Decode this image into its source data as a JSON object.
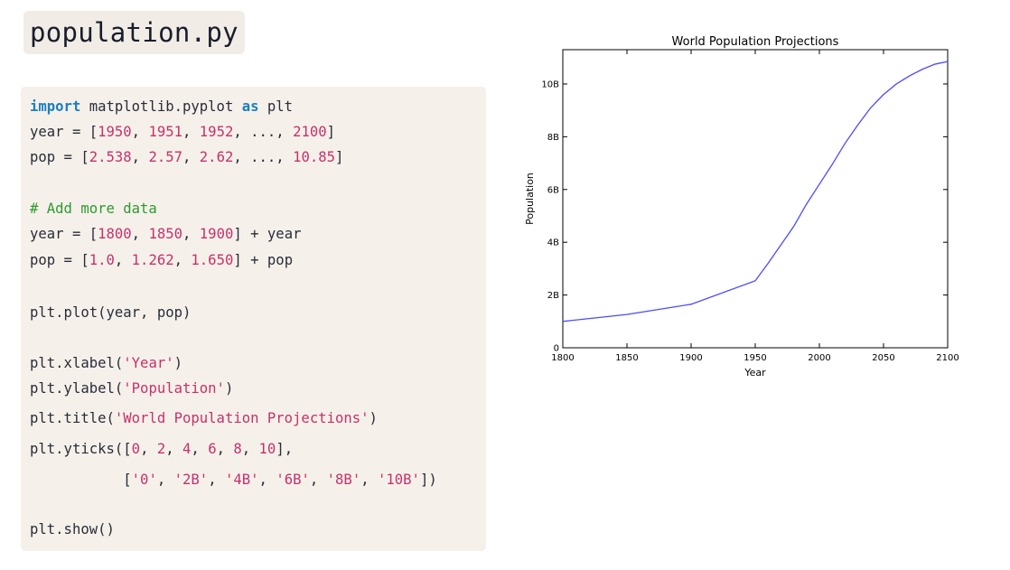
{
  "file_title": "population.py",
  "code": {
    "line1": {
      "kw1": "import",
      "mid": " matplotlib.pyplot ",
      "kw2": "as",
      "end": " plt"
    },
    "line2": {
      "pre": "year = [",
      "n1": "1950",
      "s1": ", ",
      "n2": "1951",
      "s2": ", ",
      "n3": "1952",
      "s3": ", ..., ",
      "n4": "2100",
      "post": "]"
    },
    "line3": {
      "pre": "pop = [",
      "n1": "2.538",
      "s1": ", ",
      "n2": "2.57",
      "s2": ", ",
      "n3": "2.62",
      "s3": ", ..., ",
      "n4": "10.85",
      "post": "]"
    },
    "line4": {
      "comment": "# Add more data"
    },
    "line5": {
      "pre": "year = [",
      "n1": "1800",
      "s1": ", ",
      "n2": "1850",
      "s2": ", ",
      "n3": "1900",
      "post": "] + year"
    },
    "line6": {
      "pre": "pop = [",
      "n1": "1.0",
      "s1": ", ",
      "n2": "1.262",
      "s2": ", ",
      "n3": "1.650",
      "post": "] + pop"
    },
    "line7": {
      "text": "plt.plot(year, pop)"
    },
    "line8": {
      "pre": "plt.xlabel(",
      "str": "'Year'",
      "post": ")"
    },
    "line9": {
      "pre": "plt.ylabel(",
      "str": "'Population'",
      "post": ")"
    },
    "line10": {
      "pre": "plt.title(",
      "str": "'World Population Projections'",
      "post": ")"
    },
    "line11": {
      "pre": "plt.yticks([",
      "n1": "0",
      "s1": ", ",
      "n2": "2",
      "s2": ", ",
      "n3": "4",
      "s3": ", ",
      "n4": "6",
      "s4": ", ",
      "n5": "8",
      "s5": ", ",
      "n6": "10",
      "post": "],"
    },
    "line12": {
      "indent": "           [",
      "t1": "'0'",
      "s1": ", ",
      "t2": "'2B'",
      "s2": ", ",
      "t3": "'4B'",
      "s3": ", ",
      "t4": "'6B'",
      "s4": ", ",
      "t5": "'8B'",
      "s5": ", ",
      "t6": "'10B'",
      "post": "])"
    },
    "line13": {
      "text": "plt.show()"
    }
  },
  "colors": {
    "keyword": "#1b7fbf",
    "number": "#c8306c",
    "comment": "#2e9a2e",
    "line": "#4a4aff"
  },
  "chart_data": {
    "type": "line",
    "title": "World Population Projections",
    "xlabel": "Year",
    "ylabel": "Population",
    "xlim": [
      1800,
      2100
    ],
    "ylim": [
      0,
      11.3
    ],
    "xticks": [
      1800,
      1850,
      1900,
      1950,
      2000,
      2050,
      2100
    ],
    "xtick_labels": [
      "1800",
      "1850",
      "1900",
      "1950",
      "2000",
      "2050",
      "2100"
    ],
    "yticks": [
      0,
      2,
      4,
      6,
      8,
      10
    ],
    "ytick_labels": [
      "0",
      "2B",
      "4B",
      "6B",
      "8B",
      "10B"
    ],
    "grid": false,
    "series": [
      {
        "x": [
          1800,
          1850,
          1900,
          1950,
          1960,
          1970,
          1980,
          1990,
          2000,
          2010,
          2020,
          2030,
          2040,
          2050,
          2060,
          2070,
          2080,
          2090,
          2100
        ],
        "y": [
          1.0,
          1.262,
          1.65,
          2.538,
          3.2,
          3.9,
          4.6,
          5.45,
          6.2,
          6.95,
          7.75,
          8.45,
          9.1,
          9.6,
          10.0,
          10.3,
          10.55,
          10.75,
          10.85
        ]
      }
    ]
  }
}
